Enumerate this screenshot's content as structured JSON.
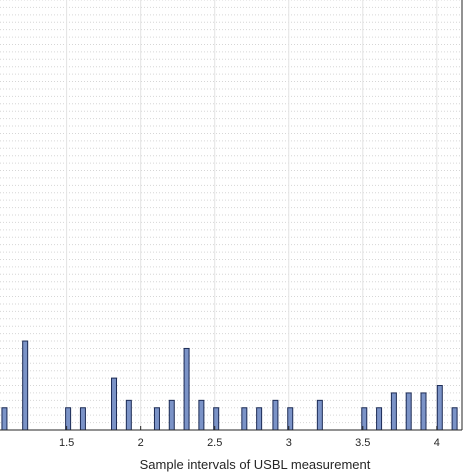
{
  "chart_data": {
    "type": "bar",
    "xlabel": "Sample intervals of USBL measurement",
    "ylabel": "",
    "title": "",
    "xlim": [
      1.05,
      4.17
    ],
    "ylim": [
      0,
      58
    ],
    "xticks": [
      1.5,
      2,
      2.5,
      3,
      3.5,
      4
    ],
    "tick_labels": [
      "1.5",
      "2",
      "2.5",
      "3",
      "3.5",
      "4"
    ],
    "grid": "major solid + minor dotted",
    "bar_color": "#7b93c7",
    "bar_edge_color": "#1c2b55",
    "x": [
      1.08,
      1.22,
      1.51,
      1.61,
      1.82,
      1.92,
      2.11,
      2.21,
      2.31,
      2.41,
      2.51,
      2.7,
      2.8,
      2.91,
      3.01,
      3.21,
      3.51,
      3.61,
      3.71,
      3.81,
      3.91,
      4.02,
      4.12
    ],
    "values": [
      3,
      12,
      3,
      3,
      7,
      4,
      3,
      4,
      11,
      4,
      3,
      3,
      3,
      4,
      3,
      4,
      3,
      3,
      5,
      5,
      5,
      6,
      3
    ]
  }
}
